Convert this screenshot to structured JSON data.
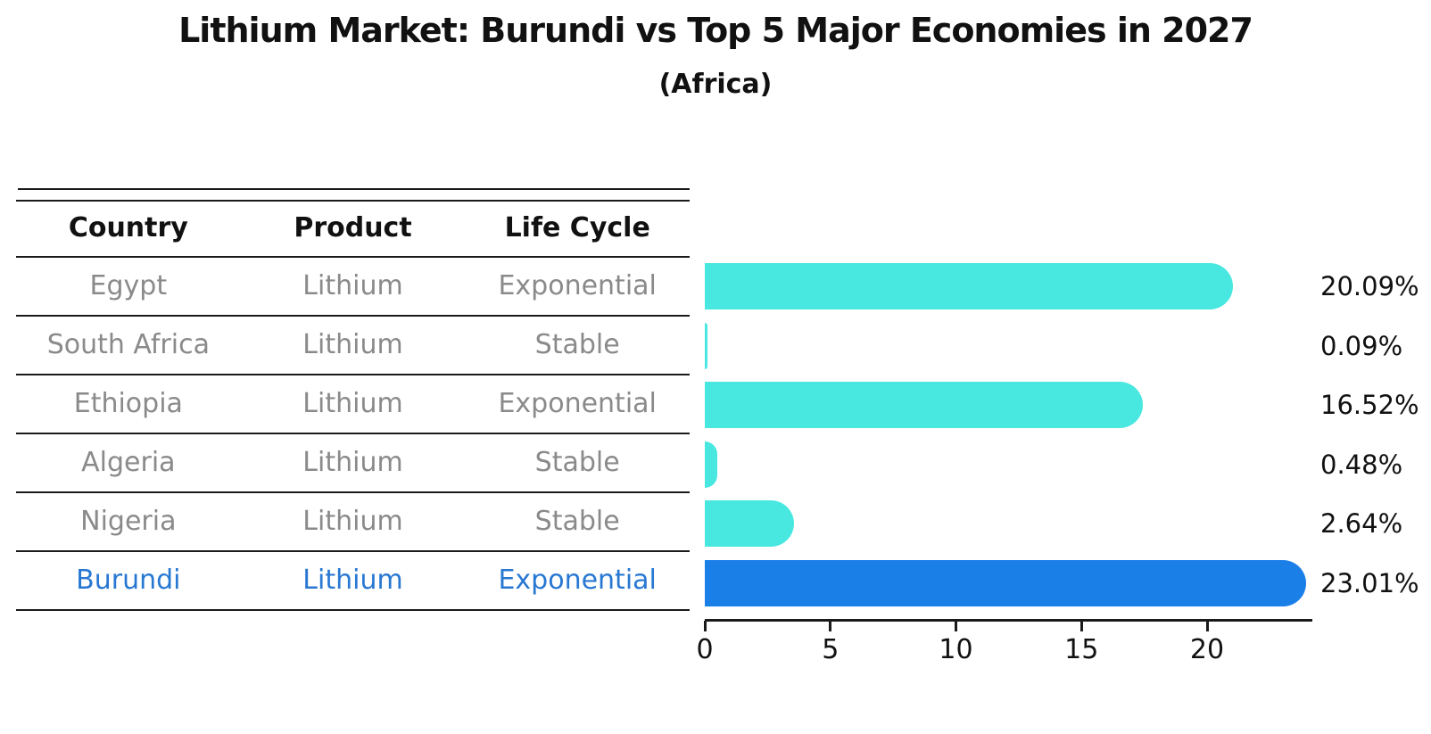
{
  "title": "Lithium Market: Burundi vs Top 5 Major Economies in 2027",
  "subtitle": "(Africa)",
  "table": {
    "columns": [
      "Country",
      "Product",
      "Life Cycle"
    ],
    "rows": [
      {
        "country": "Egypt",
        "product": "Lithium",
        "life_cycle": "Exponential",
        "highlight": false
      },
      {
        "country": "South Africa",
        "product": "Lithium",
        "life_cycle": "Stable",
        "highlight": false
      },
      {
        "country": "Ethiopia",
        "product": "Lithium",
        "life_cycle": "Exponential",
        "highlight": false
      },
      {
        "country": "Algeria",
        "product": "Lithium",
        "life_cycle": "Stable",
        "highlight": false
      },
      {
        "country": "Nigeria",
        "product": "Lithium",
        "life_cycle": "Stable",
        "highlight": false
      },
      {
        "country": "Burundi",
        "product": "Lithium",
        "life_cycle": "Exponential",
        "highlight": true
      }
    ]
  },
  "chart_data": {
    "type": "bar",
    "orientation": "horizontal",
    "title": "Lithium Market: Burundi vs Top 5 Major Economies in 2027 (Africa)",
    "categories": [
      "Egypt",
      "South Africa",
      "Ethiopia",
      "Algeria",
      "Nigeria",
      "Burundi"
    ],
    "values": [
      20.09,
      0.09,
      16.52,
      0.48,
      2.64,
      23.01
    ],
    "value_labels": [
      "20.09%",
      "0.09%",
      "16.52%",
      "0.48%",
      "2.64%",
      "23.01%"
    ],
    "x_ticks": [
      "0",
      "5",
      "10",
      "15",
      "20"
    ],
    "x_tick_values": [
      0,
      5,
      10,
      15,
      20
    ],
    "xlim": [
      0,
      24.2
    ],
    "grid": false,
    "legend": false,
    "bar_color": "#48E8E1",
    "highlight_index": 5,
    "highlight_color": "#1B7FE8",
    "highlight_border_style": "dotted"
  },
  "colors": {
    "background": "#ffffff",
    "line": "#1a1a1a",
    "header_text": "#111111",
    "row_text": "#8a8a8a",
    "highlight_text": "#2878D2",
    "value_text": "#111111"
  }
}
